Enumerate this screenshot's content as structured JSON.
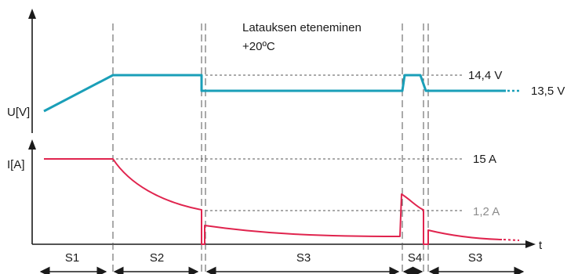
{
  "title_line1": "Latauksen eteneminen",
  "title_line2": "+20ºC",
  "axes": {
    "voltage_label": "U[V]",
    "current_label": "I[A]",
    "time_label": "t"
  },
  "levels": {
    "voltage_high": "14,4 V",
    "voltage_float": "13,5 V",
    "current_max": "15 A",
    "current_low": "1,2 A"
  },
  "stages": [
    "S1",
    "S2",
    "S3",
    "S4",
    "S3"
  ],
  "colors": {
    "voltage_curve": "#1a9fb8",
    "current_curve": "#e0244e",
    "axis": "#1a1a1a",
    "guide": "#555555",
    "muted_label": "#8c8c8c"
  }
}
